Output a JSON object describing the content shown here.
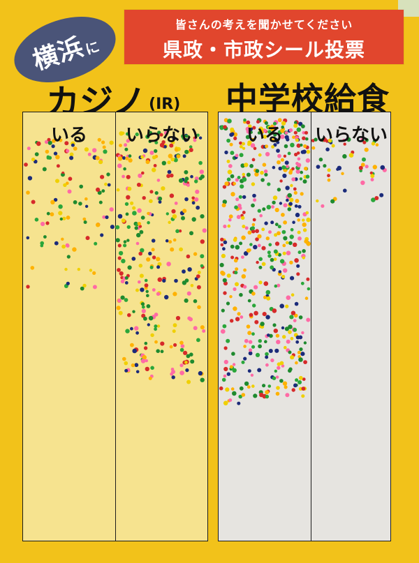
{
  "badge": {
    "city": "横浜",
    "particle": "に"
  },
  "banner": {
    "subtitle": "皆さんの考えを聞かせてください",
    "title": "県政・市政シール投票"
  },
  "topics": [
    {
      "title": "カジノ",
      "note": "(IR)",
      "columns": [
        "いる",
        "いらない"
      ]
    },
    {
      "title": "中学校給食",
      "columns": [
        "いる",
        "いらない"
      ]
    }
  ],
  "colors": {
    "board": "#f2c21a",
    "banner": "#e1462d",
    "badge": "#4a5478",
    "panel_left": "#f6e38f",
    "panel_right": "#e6e4e0",
    "stickers": [
      "#1f8a2e",
      "#2aa63a",
      "#d62a2a",
      "#1b2b7a",
      "#f0d000",
      "#ff6aa5",
      "#ffb200"
    ]
  }
}
